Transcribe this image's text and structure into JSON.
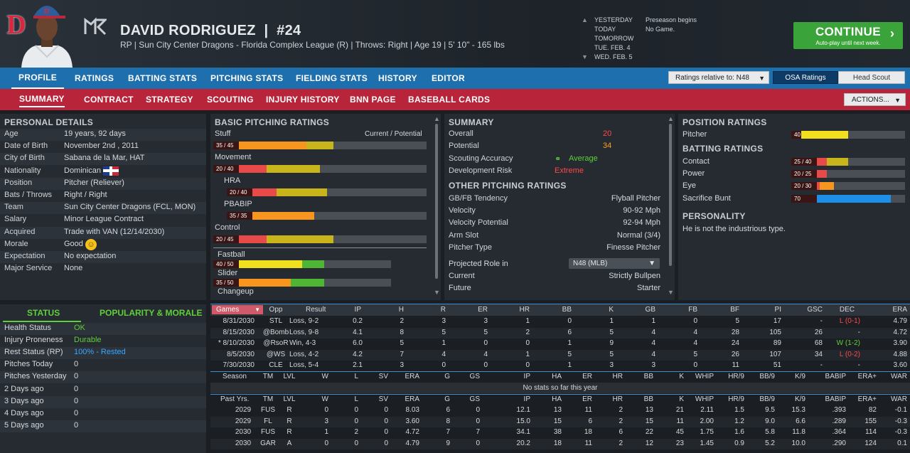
{
  "header": {
    "team_logo_letter": "D",
    "player_name": "DAVID RODRIGUEZ",
    "player_number": "#24",
    "player_sub": "RP | Sun City Center Dragons - Florida Complex League (R)  |  Throws: Right  |  Age 19  |  5' 10\" - 165 lbs",
    "dates": [
      {
        "label": "YESTERDAY",
        "event": "Preseason begins"
      },
      {
        "label": "TODAY",
        "event": "No Game."
      },
      {
        "label": "TOMORROW",
        "event": ""
      },
      {
        "label": "TUE. FEB. 4",
        "event": ""
      },
      {
        "label": "WED. FEB. 5",
        "event": ""
      }
    ],
    "continue_label": "CONTINUE",
    "continue_sub": "Auto-play until next week."
  },
  "nav1": {
    "tabs": [
      "PROFILE",
      "RATINGS",
      "BATTING STATS",
      "PITCHING STATS",
      "FIELDING STATS",
      "HISTORY",
      "EDITOR"
    ],
    "ratings_relative": "Ratings relative to: N48",
    "toggle_left": "OSA Ratings",
    "toggle_right": "Head Scout"
  },
  "nav2": {
    "tabs": [
      "SUMMARY",
      "CONTRACT",
      "STRATEGY",
      "SCOUTING",
      "INJURY HISTORY",
      "BNN PAGE",
      "BASEBALL CARDS"
    ],
    "actions": "ACTIONS..."
  },
  "personal": {
    "title": "PERSONAL DETAILS",
    "rows": [
      {
        "label": "Age",
        "value": "19 years, 92 days"
      },
      {
        "label": "Date of Birth",
        "value": "November 2nd , 2011"
      },
      {
        "label": "City of Birth",
        "value": "Sabana de la Mar, HAT"
      },
      {
        "label": "Nationality",
        "value": "Dominican"
      },
      {
        "label": "Position",
        "value": "Pitcher (Reliever)"
      },
      {
        "label": "Bats / Throws",
        "value": "Right / Right"
      },
      {
        "label": "Team",
        "value": "Sun City Center Dragons (FCL, MON)"
      },
      {
        "label": "Salary",
        "value": "Minor League Contract"
      },
      {
        "label": "Acquired",
        "value": "Trade with VAN (12/14/2030)"
      },
      {
        "label": "Morale",
        "value": "Good"
      },
      {
        "label": "Expectation",
        "value": "No expectation"
      },
      {
        "label": "Major Service",
        "value": "None"
      }
    ]
  },
  "pitching": {
    "title": "BASIC PITCHING RATINGS",
    "cur_pot": "Current / Potential",
    "items": [
      {
        "label": "Stuff",
        "tag": "35 / 45",
        "cur": 35,
        "pot": 45,
        "color": "#f7961e",
        "potcolor": "#c8b41b"
      },
      {
        "label": "Movement",
        "tag": "20 / 40",
        "cur": 20,
        "pot": 40,
        "color": "#e84a4a",
        "potcolor": "#c8b41b"
      },
      {
        "label": "HRA",
        "tag": "20 / 40",
        "cur": 20,
        "pot": 40,
        "color": "#e84a4a",
        "potcolor": "#c8b41b",
        "sub": true
      },
      {
        "label": "PBABIP",
        "tag": "35 / 35",
        "cur": 35,
        "pot": 35,
        "color": "#f7961e",
        "potcolor": "#f7961e",
        "sub": true
      },
      {
        "label": "Control",
        "tag": "20 / 45",
        "cur": 20,
        "pot": 45,
        "color": "#e84a4a",
        "potcolor": "#c8b41b"
      }
    ],
    "pitches": [
      {
        "label": "Fastball",
        "tag": "40 / 50",
        "cur": 40,
        "pot": 50,
        "color": "#f0e01e",
        "potcolor": "#4fb534"
      },
      {
        "label": "Slider",
        "tag": "35 / 50",
        "cur": 35,
        "pot": 50,
        "color": "#f7961e",
        "potcolor": "#4fb534"
      },
      {
        "label": "Changeup",
        "tag": "",
        "cur": 0,
        "pot": 0
      }
    ]
  },
  "summary": {
    "title": "SUMMARY",
    "rows": [
      {
        "label": "Overall",
        "value": "20",
        "cls": "red"
      },
      {
        "label": "Potential",
        "value": "34",
        "cls": "orange"
      },
      {
        "label": "Scouting Accuracy",
        "value": "Average",
        "cls": "green"
      },
      {
        "label": "Development Risk",
        "value": "Extreme",
        "cls": "red"
      }
    ],
    "other_title": "OTHER PITCHING RATINGS",
    "other": [
      {
        "label": "GB/FB Tendency",
        "value": "Flyball Pitcher"
      },
      {
        "label": "Velocity",
        "value": "90-92 Mph"
      },
      {
        "label": "Velocity Potential",
        "value": "92-94 Mph"
      },
      {
        "label": "Arm Slot",
        "value": "Normal (3/4)"
      },
      {
        "label": "Pitcher Type",
        "value": "Finesse Pitcher"
      }
    ],
    "projected_label": "Projected Role in",
    "projected_select": "N48 (MLB)",
    "current_label": "Current",
    "current_value": "Strictly Bullpen",
    "future_label": "Future",
    "future_value": "Starter"
  },
  "position": {
    "title": "POSITION RATINGS",
    "pitcher": {
      "label": "Pitcher",
      "tag": "40",
      "value": 40,
      "color": "#f0e01e"
    },
    "batting_title": "BATTING RATINGS",
    "batting": [
      {
        "label": "Contact",
        "tag": "25 / 40",
        "cur": 25,
        "pot": 40,
        "color": "#e84a4a",
        "potcolor": "#c8b41b"
      },
      {
        "label": "Power",
        "tag": "20 / 25",
        "cur": 20,
        "pot": 25,
        "color": "#e84a4a",
        "potcolor": "#e84a4a"
      },
      {
        "label": "Eye",
        "tag": "20 / 30",
        "cur": 20,
        "pot": 30,
        "color": "#e84a4a",
        "potcolor": "#f7961e"
      },
      {
        "label": "Sacrifice Bunt",
        "tag": "70",
        "cur": 70,
        "pot": 70,
        "color": "#1e8fe8",
        "potcolor": "#1e8fe8"
      }
    ],
    "personality_title": "PERSONALITY",
    "personality": "He is not the industrious type."
  },
  "status": {
    "tab1": "STATUS",
    "tab2": "POPULARITY & MORALE",
    "rows": [
      {
        "label": "Health Status",
        "value": "OK",
        "cls": "green"
      },
      {
        "label": "Injury Proneness",
        "value": "Durable",
        "cls": "green"
      },
      {
        "label": "Rest Status (RP)",
        "value": "100% - Rested",
        "cls": "blue"
      },
      {
        "label": "Pitches Today",
        "value": "0",
        "cls": ""
      },
      {
        "label": "Pitches Yesterday",
        "value": "0",
        "cls": ""
      },
      {
        "label": "2 Days ago",
        "value": "0",
        "cls": ""
      },
      {
        "label": "3 Days ago",
        "value": "0",
        "cls": ""
      },
      {
        "label": "4 Days ago",
        "value": "0",
        "cls": ""
      },
      {
        "label": "5 Days ago",
        "value": "0",
        "cls": ""
      }
    ]
  },
  "games": {
    "select": "Games",
    "headers": [
      "Opp",
      "Result",
      "IP",
      "H",
      "R",
      "ER",
      "HR",
      "BB",
      "K",
      "GB",
      "FB",
      "BF",
      "PI",
      "GSC",
      "DEC",
      "ERA"
    ],
    "rows": [
      [
        "8/31/2030",
        "STL",
        "Loss, 9-2",
        "0.2",
        "2",
        "3",
        "3",
        "1",
        "0",
        "1",
        "1",
        "0",
        "5",
        "17",
        "-",
        "L (0-1)",
        "4.79"
      ],
      [
        "8/15/2030",
        "@Bomb",
        "Loss, 9-8",
        "4.1",
        "8",
        "5",
        "5",
        "2",
        "6",
        "5",
        "4",
        "4",
        "28",
        "105",
        "26",
        "-",
        "4.72"
      ],
      [
        "* 8/10/2030",
        "@RsoR",
        "Win, 4-3",
        "6.0",
        "5",
        "1",
        "0",
        "0",
        "1",
        "9",
        "4",
        "4",
        "24",
        "89",
        "68",
        "W (1-2)",
        "3.90"
      ],
      [
        "8/5/2030",
        "@WS",
        "Loss, 4-2",
        "4.2",
        "7",
        "4",
        "4",
        "1",
        "5",
        "5",
        "4",
        "5",
        "26",
        "107",
        "34",
        "L (0-2)",
        "4.88"
      ],
      [
        "7/30/2030",
        "CLE",
        "Loss, 5-4",
        "2.1",
        "3",
        "0",
        "0",
        "0",
        "1",
        "3",
        "3",
        "0",
        "11",
        "51",
        "-",
        "-",
        "3.60"
      ]
    ]
  },
  "season": {
    "headers": [
      "Season",
      "TM",
      "LVL",
      "W",
      "L",
      "SV",
      "ERA",
      "G",
      "GS",
      "IP",
      "HA",
      "ER",
      "HR",
      "BB",
      "K",
      "WHIP",
      "HR/9",
      "BB/9",
      "K/9",
      "BABIP",
      "ERA+",
      "WAR"
    ],
    "empty": "No stats so far this year"
  },
  "past": {
    "headers": [
      "Past Yrs.",
      "TM",
      "LVL",
      "W",
      "L",
      "SV",
      "ERA",
      "G",
      "GS",
      "IP",
      "HA",
      "ER",
      "HR",
      "BB",
      "K",
      "WHIP",
      "HR/9",
      "BB/9",
      "K/9",
      "BABIP",
      "ERA+",
      "WAR"
    ],
    "rows": [
      [
        "2029",
        "FUS",
        "R",
        "0",
        "0",
        "0",
        "8.03",
        "6",
        "0",
        "12.1",
        "13",
        "11",
        "2",
        "13",
        "21",
        "2.11",
        "1.5",
        "9.5",
        "15.3",
        ".393",
        "82",
        "-0.1"
      ],
      [
        "2029",
        "FL",
        "R",
        "3",
        "0",
        "0",
        "3.60",
        "8",
        "0",
        "15.0",
        "15",
        "6",
        "2",
        "15",
        "11",
        "2.00",
        "1.2",
        "9.0",
        "6.6",
        ".289",
        "155",
        "-0.3"
      ],
      [
        "2030",
        "FUS",
        "R",
        "1",
        "2",
        "0",
        "4.72",
        "7",
        "7",
        "34.1",
        "38",
        "18",
        "6",
        "22",
        "45",
        "1.75",
        "1.6",
        "5.8",
        "11.8",
        ".364",
        "114",
        "-0.3"
      ],
      [
        "2030",
        "GAR",
        "A",
        "0",
        "0",
        "0",
        "4.79",
        "9",
        "0",
        "20.2",
        "18",
        "11",
        "2",
        "12",
        "23",
        "1.45",
        "0.9",
        "5.2",
        "10.0",
        ".290",
        "124",
        "0.1"
      ]
    ]
  }
}
